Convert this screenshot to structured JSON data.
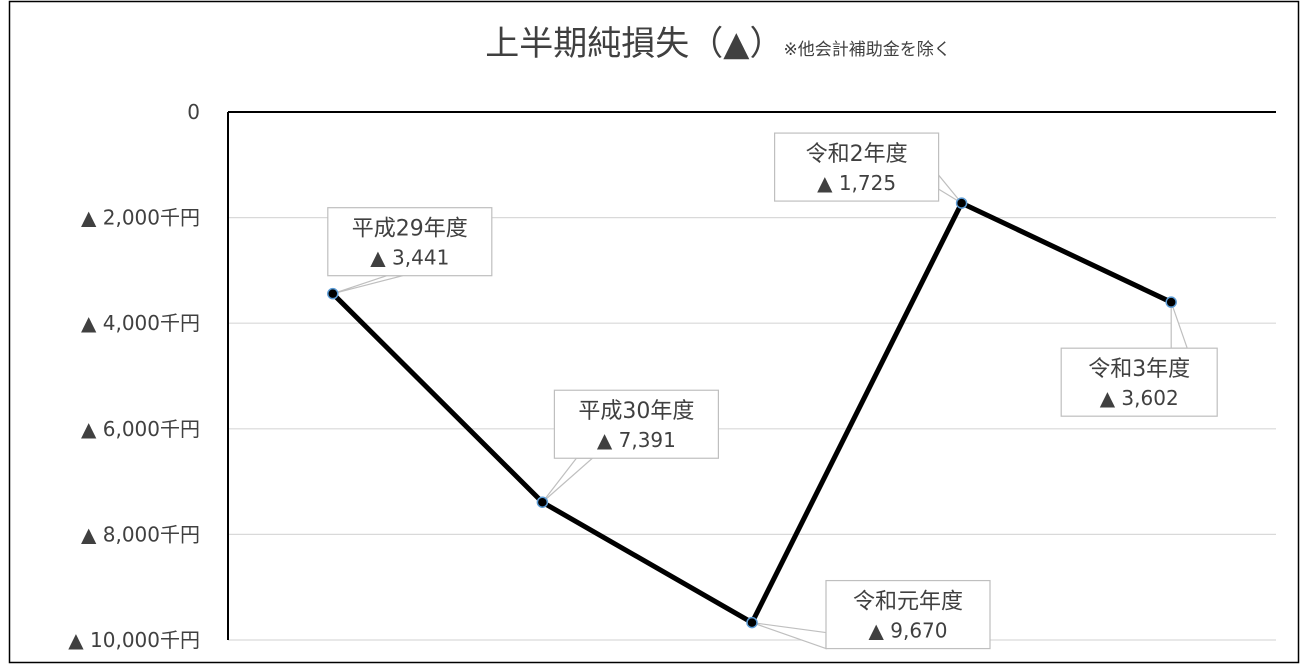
{
  "chart_data": {
    "type": "line",
    "title": "上半期純損失（▲）",
    "subtitle": "※他会計補助金を除く",
    "ylim": [
      0,
      -10000
    ],
    "y_ticks": [
      {
        "value": 0,
        "label": "0"
      },
      {
        "value": -2000,
        "label": "▲ 2,000千円"
      },
      {
        "value": -4000,
        "label": "▲ 4,000千円"
      },
      {
        "value": -6000,
        "label": "▲ 6,000千円"
      },
      {
        "value": -8000,
        "label": "▲ 8,000千円"
      },
      {
        "value": -10000,
        "label": "▲ 10,000千円"
      }
    ],
    "categories": [
      "平成29年度",
      "平成30年度",
      "令和元年度",
      "令和2年度",
      "令和3年度"
    ],
    "values": [
      -3441,
      -7391,
      -9670,
      -1725,
      -3602
    ],
    "data_labels": [
      {
        "category": "平成29年度",
        "value": "▲ 3,441"
      },
      {
        "category": "平成30年度",
        "value": "▲ 7,391"
      },
      {
        "category": "令和元年度",
        "value": "▲ 9,670"
      },
      {
        "category": "令和2年度",
        "value": "▲ 1,725"
      },
      {
        "category": "令和3年度",
        "value": "▲ 3,602"
      }
    ],
    "grid": true,
    "legend": "none",
    "colors": {
      "line": "#000000",
      "marker_edge": "#5b9bd5",
      "grid": "#d9d9d9",
      "text": "#404040",
      "callout_border": "#bfbfbf"
    }
  }
}
